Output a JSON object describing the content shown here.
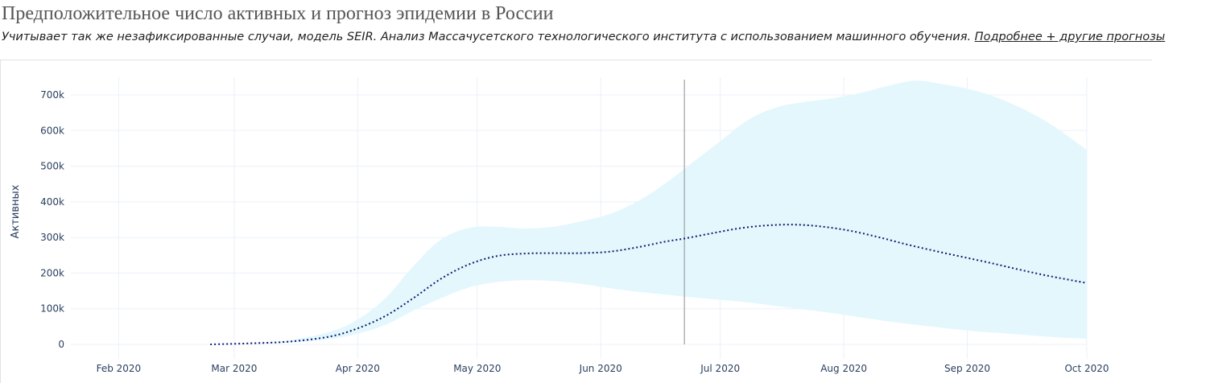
{
  "header": {
    "title": "Предположительное число активных и прогноз эпидемии в России",
    "subtitle": "Учитывает так же незафиксированные случаи, модель SEIR. Анализ Массачусетского технологического института с использованием машинного обучения. ",
    "link_label": "Подробнее + другие прогнозы"
  },
  "chart_data": {
    "type": "area",
    "title": "Предположительное число активных и прогноз эпидемии в России",
    "ylabel": "Активных",
    "xlabel": "",
    "ylim": [
      0,
      700000
    ],
    "yticks": [
      0,
      100000,
      200000,
      300000,
      400000,
      500000,
      600000,
      700000
    ],
    "ytick_labels": [
      "0",
      "100k",
      "200k",
      "300k",
      "400k",
      "500k",
      "600k",
      "700k"
    ],
    "xticks": [
      "2020-02-01",
      "2020-03-01",
      "2020-04-01",
      "2020-05-01",
      "2020-06-01",
      "2020-07-01",
      "2020-08-01",
      "2020-09-01",
      "2020-10-01"
    ],
    "xtick_labels": [
      "Feb 2020",
      "Mar 2020",
      "Apr 2020",
      "May 2020",
      "Jun 2020",
      "Jul 2020",
      "Aug 2020",
      "Sep 2020",
      "Oct 2020"
    ],
    "x_range": [
      "2020-01-20",
      "2020-10-01"
    ],
    "grid": true,
    "vline_date": "2020-06-22",
    "colors": {
      "line": "#0d1b6e",
      "band": "#e3f7fd",
      "vline": "#a0a0a0",
      "grid": "#ebf0f8",
      "text": "#2a3f5f"
    },
    "series": [
      {
        "x": [
          "2020-02-24",
          "2020-03-05",
          "2020-03-15",
          "2020-03-25",
          "2020-04-01",
          "2020-04-08",
          "2020-04-15",
          "2020-04-22",
          "2020-04-29",
          "2020-05-06",
          "2020-05-13",
          "2020-05-20",
          "2020-05-27",
          "2020-06-03",
          "2020-06-10",
          "2020-06-17",
          "2020-06-22",
          "2020-06-29",
          "2020-07-06",
          "2020-07-13",
          "2020-07-20",
          "2020-07-27",
          "2020-08-03",
          "2020-08-10",
          "2020-08-17",
          "2020-08-24",
          "2020-08-31",
          "2020-09-07",
          "2020-09-14",
          "2020-09-21",
          "2020-10-01"
        ],
        "y": [
          0,
          3000,
          8000,
          22000,
          45000,
          80000,
          130000,
          185000,
          225000,
          248000,
          255000,
          256000,
          256000,
          260000,
          272000,
          288000,
          297000,
          312000,
          326000,
          334000,
          336000,
          330000,
          318000,
          300000,
          280000,
          262000,
          245000,
          228000,
          210000,
          193000,
          172000
        ]
      },
      {
        "x": [
          "2020-02-24",
          "2020-03-05",
          "2020-03-15",
          "2020-03-25",
          "2020-04-01",
          "2020-04-08",
          "2020-04-15",
          "2020-04-22",
          "2020-04-29",
          "2020-05-06",
          "2020-05-13",
          "2020-05-20",
          "2020-05-27",
          "2020-06-03",
          "2020-06-10",
          "2020-06-17",
          "2020-06-24",
          "2020-07-01",
          "2020-07-08",
          "2020-07-15",
          "2020-07-22",
          "2020-07-29",
          "2020-08-05",
          "2020-08-12",
          "2020-08-19",
          "2020-08-26",
          "2020-09-02",
          "2020-09-09",
          "2020-09-16",
          "2020-09-23",
          "2020-10-01"
        ],
        "y": [
          0,
          3000,
          12000,
          35000,
          70000,
          130000,
          220000,
          295000,
          327000,
          330000,
          325000,
          330000,
          345000,
          365000,
          400000,
          450000,
          510000,
          570000,
          630000,
          665000,
          680000,
          690000,
          705000,
          725000,
          740000,
          730000,
          715000,
          690000,
          655000,
          610000,
          545000
        ]
      },
      {
        "x": [
          "2020-02-24",
          "2020-03-05",
          "2020-03-15",
          "2020-03-25",
          "2020-04-01",
          "2020-04-08",
          "2020-04-15",
          "2020-04-22",
          "2020-04-29",
          "2020-05-06",
          "2020-05-13",
          "2020-05-20",
          "2020-05-27",
          "2020-06-03",
          "2020-06-10",
          "2020-06-17",
          "2020-06-24",
          "2020-07-01",
          "2020-07-08",
          "2020-07-15",
          "2020-07-22",
          "2020-07-29",
          "2020-08-05",
          "2020-08-12",
          "2020-08-19",
          "2020-08-26",
          "2020-09-02",
          "2020-09-09",
          "2020-09-16",
          "2020-09-23",
          "2020-10-01"
        ],
        "y": [
          0,
          2000,
          5000,
          15000,
          30000,
          55000,
          95000,
          130000,
          160000,
          175000,
          180000,
          178000,
          170000,
          158000,
          148000,
          140000,
          132000,
          125000,
          118000,
          108000,
          98000,
          88000,
          76000,
          65000,
          55000,
          46000,
          38000,
          32000,
          26000,
          20000,
          16000
        ]
      }
    ]
  }
}
